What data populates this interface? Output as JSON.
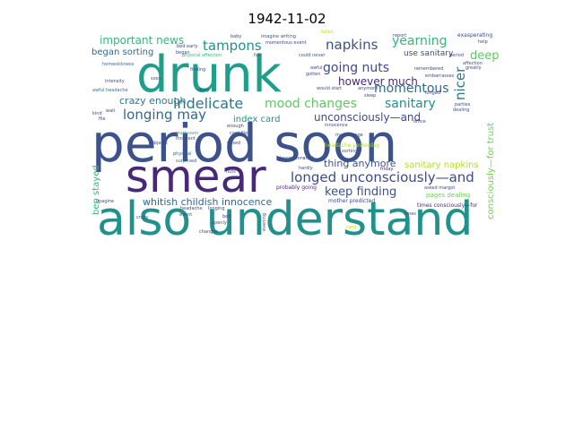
{
  "chart_data": {
    "type": "wordcloud",
    "title": "1942-11-02",
    "palette": "viridis",
    "words": [
      {
        "text": "also understand",
        "weight": 100,
        "color": "#21918c"
      },
      {
        "text": "period soon",
        "weight": 98,
        "color": "#3b528b"
      },
      {
        "text": "smear",
        "weight": 90,
        "color": "#482878"
      },
      {
        "text": "drunk",
        "weight": 82,
        "color": "#1f9e89"
      },
      {
        "text": "indelicate",
        "weight": 28,
        "color": "#2a788e"
      },
      {
        "text": "longed unconsciously—and",
        "weight": 26,
        "color": "#3e4a89"
      },
      {
        "text": "mood changes",
        "weight": 25,
        "color": "#5ec962"
      },
      {
        "text": "longing may",
        "weight": 24,
        "color": "#31688e"
      },
      {
        "text": "tampons",
        "weight": 23,
        "color": "#21918c"
      },
      {
        "text": "napkins",
        "weight": 23,
        "color": "#3b528b"
      },
      {
        "text": "yearning",
        "weight": 22,
        "color": "#35b779"
      },
      {
        "text": "going nuts",
        "weight": 21,
        "color": "#3e4a89"
      },
      {
        "text": "momentous",
        "weight": 20,
        "color": "#31688e"
      },
      {
        "text": "sanitary",
        "weight": 20,
        "color": "#21918c"
      },
      {
        "text": "nicer",
        "weight": 19,
        "color": "#2a788e"
      },
      {
        "text": "deep",
        "weight": 19,
        "color": "#5ec962"
      },
      {
        "text": "keep finding",
        "weight": 19,
        "color": "#3b528b"
      },
      {
        "text": "important news",
        "weight": 17,
        "color": "#35b779"
      },
      {
        "text": "however much",
        "weight": 17,
        "color": "#482878"
      },
      {
        "text": "unconsciously—and",
        "weight": 16,
        "color": "#3e4a89"
      },
      {
        "text": "whitish childish innocence",
        "weight": 15,
        "color": "#31688e"
      },
      {
        "text": "crazy enough",
        "weight": 15,
        "color": "#2a788e"
      },
      {
        "text": "index card",
        "weight": 14,
        "color": "#21918c"
      },
      {
        "text": "thing anymore",
        "weight": 13,
        "color": "#3b528b"
      },
      {
        "text": "sanitary napkins",
        "weight": 13,
        "color": "#b5de2b"
      },
      {
        "text": "consciously—for trust",
        "weight": 12,
        "color": "#6ece58"
      },
      {
        "text": "bep stayed",
        "weight": 12,
        "color": "#35b779"
      },
      {
        "text": "began sorting",
        "weight": 12,
        "color": "#31688e"
      },
      {
        "text": "use sanitary",
        "weight": 11,
        "color": "#3e4a89"
      },
      {
        "text": "fallen",
        "weight": 6,
        "color": "#b5de2b"
      },
      {
        "text": "exasperating",
        "weight": 6,
        "color": "#3e4a89"
      },
      {
        "text": "headache yesterday",
        "weight": 6,
        "color": "#b5de2b"
      },
      {
        "text": "pages dealing",
        "weight": 7,
        "color": "#6ece58"
      },
      {
        "text": "mother predicted",
        "weight": 6,
        "color": "#3e4a89"
      },
      {
        "text": "times consciously—for",
        "weight": 6,
        "color": "#482878"
      },
      {
        "text": "probably going",
        "weight": 6,
        "color": "#482878"
      },
      {
        "text": "physical affection",
        "weight": 6,
        "color": "#35b779"
      },
      {
        "text": "imagine writing",
        "weight": 6,
        "color": "#3b528b"
      },
      {
        "text": "momentous event",
        "weight": 6,
        "color": "#3e4a89"
      },
      {
        "text": "could never",
        "weight": 6,
        "color": "#3b528b"
      },
      {
        "text": "homesickness",
        "weight": 5,
        "color": "#31688e"
      },
      {
        "text": "awful headache",
        "weight": 5,
        "color": "#2a788e"
      },
      {
        "text": "intensity",
        "weight": 5,
        "color": "#3e4a89"
      },
      {
        "text": "remembered",
        "weight": 5,
        "color": "#3e4a89"
      },
      {
        "text": "would start",
        "weight": 5,
        "color": "#3e4a89"
      },
      {
        "text": "start soon",
        "weight": 5,
        "color": "#35b779"
      },
      {
        "text": "innocent",
        "weight": 5,
        "color": "#3e4a89"
      },
      {
        "text": "surprised",
        "weight": 5,
        "color": "#31688e"
      },
      {
        "text": "card file",
        "weight": 5,
        "color": "#3b528b"
      },
      {
        "text": "descriptions",
        "weight": 5,
        "color": "#3e4a89"
      },
      {
        "text": "office",
        "weight": 5,
        "color": "#3e4a89"
      },
      {
        "text": "dealing",
        "weight": 5,
        "color": "#3b528b"
      },
      {
        "text": "friday",
        "weight": 5,
        "color": "#482878"
      },
      {
        "text": "sorting",
        "weight": 5,
        "color": "#3e4a89"
      },
      {
        "text": "innocence",
        "weight": 5,
        "color": "#3e4a89"
      },
      {
        "text": "may change",
        "weight": 5,
        "color": "#3e4a89"
      },
      {
        "text": "subjects",
        "weight": 5,
        "color": "#3e4a89"
      },
      {
        "text": "physical",
        "weight": 5,
        "color": "#31688e"
      },
      {
        "text": "longing",
        "weight": 5,
        "color": "#3e4a89"
      },
      {
        "text": "imagine",
        "weight": 5,
        "color": "#3e4a89"
      },
      {
        "text": "crazy",
        "weight": 5,
        "color": "#3b528b"
      },
      {
        "text": "changes",
        "weight": 5,
        "color": "#3e4a89"
      },
      {
        "text": "event",
        "weight": 5,
        "color": "#3e4a89"
      },
      {
        "text": "openly",
        "weight": 5,
        "color": "#3e4a89"
      },
      {
        "text": "evening",
        "weight": 5,
        "color": "#3e4a89"
      },
      {
        "text": "headache",
        "weight": 5,
        "color": "#3e4a89"
      },
      {
        "text": "times",
        "weight": 5,
        "color": "#3e4a89"
      },
      {
        "text": "card",
        "weight": 5,
        "color": "#b5de2b"
      },
      {
        "text": "diary",
        "weight": 5,
        "color": "#3e4a89"
      },
      {
        "text": "finding",
        "weight": 5,
        "color": "#3e4a89"
      },
      {
        "text": "began",
        "weight": 5,
        "color": "#3e4a89"
      },
      {
        "text": "soon",
        "weight": 5,
        "color": "#3e4a89"
      },
      {
        "text": "enough",
        "weight": 5,
        "color": "#3e4a89"
      },
      {
        "text": "kind",
        "weight": 5,
        "color": "#3e4a89"
      },
      {
        "text": "file",
        "weight": 5,
        "color": "#3e4a89"
      },
      {
        "text": "wait",
        "weight": 5,
        "color": "#3e4a89"
      },
      {
        "text": "baby",
        "weight": 5,
        "color": "#3e4a89"
      },
      {
        "text": "bed early",
        "weight": 5,
        "color": "#3e4a89"
      },
      {
        "text": "report",
        "weight": 5,
        "color": "#3e4a89"
      },
      {
        "text": "anymore",
        "weight": 5,
        "color": "#3e4a89"
      },
      {
        "text": "sleep",
        "weight": 5,
        "color": "#3e4a89"
      },
      {
        "text": "longed",
        "weight": 5,
        "color": "#3e4a89"
      },
      {
        "text": "affection",
        "weight": 5,
        "color": "#3e4a89"
      },
      {
        "text": "greatly",
        "weight": 5,
        "color": "#3e4a89"
      },
      {
        "text": "period",
        "weight": 5,
        "color": "#3e4a89"
      },
      {
        "text": "embarrasses",
        "weight": 5,
        "color": "#3e4a89"
      },
      {
        "text": "parties",
        "weight": 5,
        "color": "#3e4a89"
      },
      {
        "text": "asked margot",
        "weight": 5,
        "color": "#3e4a89"
      },
      {
        "text": "start",
        "weight": 5,
        "color": "#3e4a89"
      },
      {
        "text": "hardly",
        "weight": 5,
        "color": "#3e4a89"
      },
      {
        "text": "nuts",
        "weight": 5,
        "color": "#3e4a89"
      },
      {
        "text": "fun",
        "weight": 5,
        "color": "#3e4a89"
      },
      {
        "text": "gotten",
        "weight": 5,
        "color": "#3e4a89"
      },
      {
        "text": "awful",
        "weight": 5,
        "color": "#3e4a89"
      },
      {
        "text": "help",
        "weight": 5,
        "color": "#3e4a89"
      },
      {
        "text": "mixed",
        "weight": 5,
        "color": "#3e4a89"
      },
      {
        "text": "bed",
        "weight": 5,
        "color": "#3e4a89"
      },
      {
        "text": "use",
        "weight": 5,
        "color": "#3e4a89"
      }
    ]
  }
}
